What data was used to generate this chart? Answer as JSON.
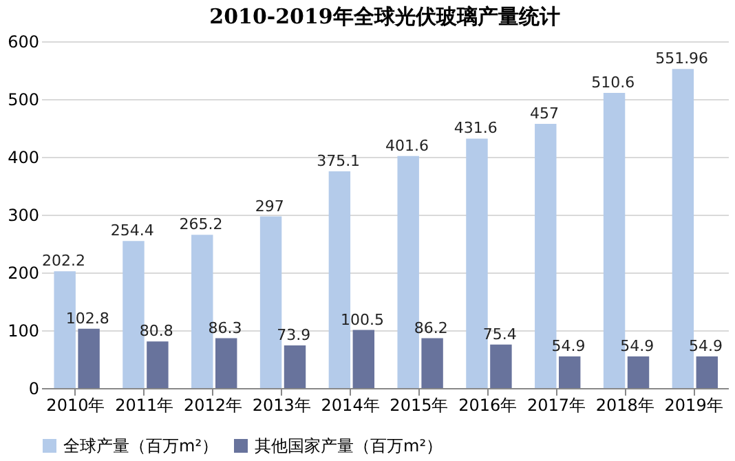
{
  "chart_data": {
    "type": "bar",
    "title": "2010-2019年全球光伏玻璃产量统计",
    "categories": [
      "2010年",
      "2011年",
      "2012年",
      "2013年",
      "2014年",
      "2015年",
      "2016年",
      "2017年",
      "2018年",
      "2019年"
    ],
    "series": [
      {
        "name": "全球产量（百万m²）",
        "color": "#b4cbea",
        "values": [
          202.2,
          254.4,
          265.2,
          297,
          375.1,
          401.6,
          431.6,
          457,
          510.6,
          551.96
        ]
      },
      {
        "name": "其他国家产量（百万m²）",
        "color": "#68739c",
        "values": [
          102.8,
          80.8,
          86.3,
          73.9,
          100.5,
          86.2,
          75.4,
          54.9,
          54.9,
          54.9
        ]
      }
    ],
    "ylim": [
      0,
      600
    ],
    "yticks": [
      0,
      100,
      200,
      300,
      400,
      500,
      600
    ],
    "grid": "y",
    "legend": "bottom",
    "data_labels": true
  }
}
